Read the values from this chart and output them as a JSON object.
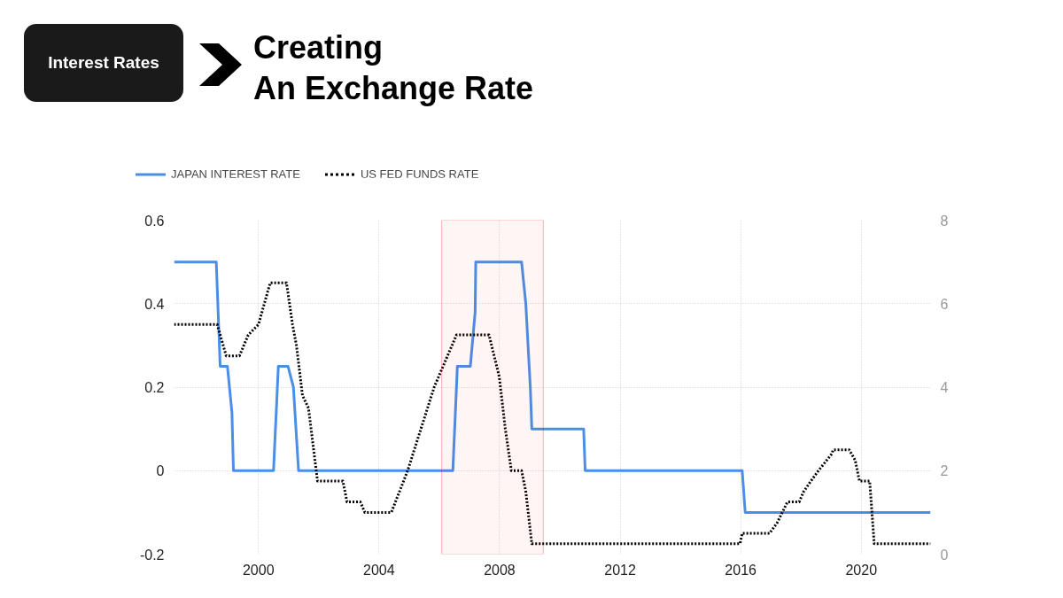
{
  "chart_data": {
    "type": "line",
    "title": "Creating\nAn Exchange Rate",
    "annotations": [
      "Interest Rates"
    ],
    "xlim": [
      1997.2,
      2022.3
    ],
    "xticks": [
      2000,
      2004,
      2008,
      2012,
      2016,
      2020
    ],
    "ylim": [
      -0.2,
      0.6
    ],
    "yticks": [
      -0.2,
      0,
      0.2,
      0.4,
      0.6
    ],
    "y2lim": [
      0,
      8
    ],
    "y2ticks": [
      0,
      2,
      4,
      6,
      8
    ],
    "grid": true,
    "legend": "top left",
    "bands": [
      {
        "axis": "x",
        "from": 2006.08,
        "to": 2009.45,
        "color": "#e00000"
      }
    ],
    "series": [
      {
        "name": "JAPAN INTEREST RATE",
        "color": "#4a8fe7",
        "line_style": "solid",
        "x": [
          1997.2,
          1998.6,
          1998.73,
          1998.97,
          1999.12,
          1999.17,
          2000.5,
          2000.66,
          2000.98,
          2001.16,
          2001.33,
          2006.45,
          2006.6,
          2007.03,
          2007.19,
          2007.21,
          2008.73,
          2008.87,
          2009.02,
          2009.07,
          2010.79,
          2010.84,
          2016.05,
          2016.15,
          2022.3
        ],
        "values": [
          0.5,
          0.5,
          0.25,
          0.25,
          0.14,
          0,
          0,
          0.25,
          0.25,
          0.2,
          0,
          0,
          0.25,
          0.25,
          0.38,
          0.5,
          0.5,
          0.4,
          0.2,
          0.1,
          0.1,
          0,
          0,
          -0.1,
          -0.1
        ]
      },
      {
        "name": "US FED FUNDS RATE",
        "color": "#000000",
        "line_style": "dotted",
        "axis": "y2",
        "x": [
          1997.2,
          1998.63,
          1998.93,
          1999.37,
          1999.66,
          2000.0,
          2000.39,
          2000.93,
          2001.13,
          2001.26,
          2001.46,
          2001.66,
          2001.96,
          2002.8,
          2002.94,
          2003.38,
          2003.53,
          2004.41,
          2004.95,
          2005.83,
          2006.57,
          2007.65,
          2007.99,
          2008.19,
          2008.39,
          2008.73,
          2008.87,
          2009.07,
          2015.98,
          2016.05,
          2016.96,
          2017.21,
          2017.55,
          2017.94,
          2018.09,
          2018.33,
          2018.58,
          2019.02,
          2019.07,
          2019.6,
          2019.8,
          2019.94,
          2020.28,
          2020.43,
          2022.3
        ],
        "values": [
          5.5,
          5.5,
          4.75,
          4.75,
          5.25,
          5.5,
          6.5,
          6.5,
          5.5,
          5.0,
          3.8,
          3.5,
          1.75,
          1.75,
          1.25,
          1.25,
          1.0,
          1.0,
          2.0,
          4.0,
          5.25,
          5.25,
          4.25,
          3.0,
          2.0,
          2.0,
          1.5,
          0.25,
          0.25,
          0.5,
          0.5,
          0.75,
          1.25,
          1.25,
          1.5,
          1.75,
          2.0,
          2.4,
          2.5,
          2.5,
          2.25,
          1.75,
          1.75,
          0.25,
          0.25
        ]
      }
    ]
  }
}
